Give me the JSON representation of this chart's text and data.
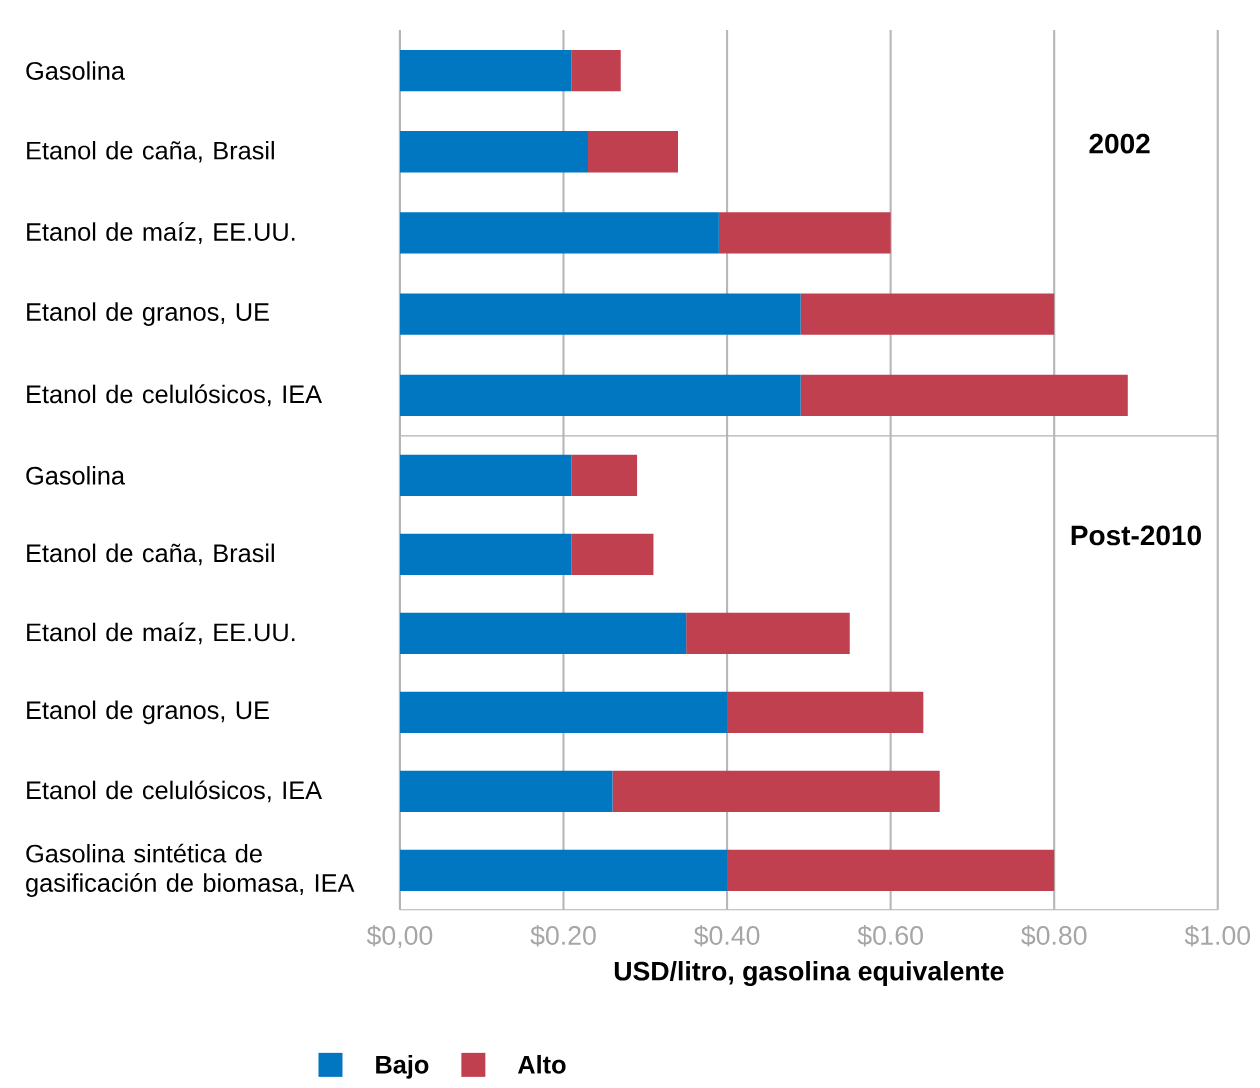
{
  "chart_data": [
    {
      "type": "bar",
      "orientation": "horizontal",
      "stacked": true,
      "grid": "x",
      "tick_labels": "y",
      "categories": [
        "Gasolina",
        "Etanol de caña, Brasil",
        "Etanol de maíz, EE.UU.",
        "Etanol de granos, UE",
        "Etanol de celulósicos, IEA"
      ],
      "series": [
        {
          "color": "#0077c0",
          "values": [
            0.21,
            0.23,
            0.39,
            0.49,
            0.49
          ]
        },
        {
          "color": "#c04050",
          "values": [
            0.06,
            0.11,
            0.21,
            0.31,
            0.4
          ]
        }
      ],
      "xlim": [
        0,
        1
      ],
      "xticks": [
        {
          "value": 0,
          "label": null
        },
        {
          "value": 0.2,
          "label": null
        },
        {
          "value": 0.4,
          "label": null
        },
        {
          "value": 0.6,
          "label": null
        },
        {
          "value": 0.8,
          "label": null
        },
        {
          "value": 1,
          "label": null
        }
      ],
      "annotations": [
        "2002"
      ]
    },
    {
      "type": "bar",
      "orientation": "horizontal",
      "stacked": true,
      "grid": "x",
      "legend": "bottom",
      "categories": [
        "Gasolina",
        "Etanol de caña, Brasil",
        "Etanol de maíz, EE.UU.",
        "Etanol de granos, UE",
        "Etanol de celulósicos, IEA",
        "Gasolina sintética de gasificación de biomasa, IEA"
      ],
      "series": [
        {
          "name": "Bajo",
          "color": "#0077c0",
          "values": [
            0.21,
            0.21,
            0.35,
            0.4,
            0.26,
            0.4
          ]
        },
        {
          "name": "Alto",
          "color": "#c04050",
          "values": [
            0.08,
            0.1,
            0.2,
            0.24,
            0.4,
            0.4
          ]
        }
      ],
      "xlim": [
        0,
        1
      ],
      "xticks": [
        {
          "value": 0,
          "label": "$0,00"
        },
        {
          "value": 0.2,
          "label": "$0.20"
        },
        {
          "value": 0.4,
          "label": "$0.40"
        },
        {
          "value": 0.6,
          "label": "$0.60"
        },
        {
          "value": 0.8,
          "label": "$0.80"
        },
        {
          "value": 1,
          "label": "$1.00"
        }
      ],
      "xlabel": "USD/litro, gasolina equivalente",
      "annotations": [
        "Post-2010"
      ]
    }
  ]
}
